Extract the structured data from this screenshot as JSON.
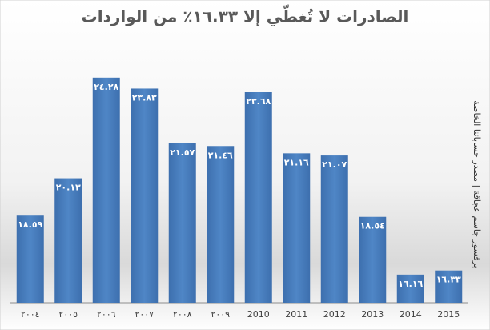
{
  "chart_data": {
    "type": "bar",
    "title": "الصادرات لا تُغطّي إلا ١٦.٣٣٪ من الواردات",
    "source": "برفسور جاسم عجاقة | مصدر حساباتنا الخاصة",
    "categories": [
      "٢٠٠٤",
      "٢٠٠٥",
      "٢٠٠٦",
      "٢٠٠٧",
      "٢٠٠٨",
      "٢٠٠٩",
      "2010",
      "2011",
      "2012",
      "2013",
      "2014",
      "2015"
    ],
    "values": [
      18.59,
      20.13,
      24.28,
      23.83,
      21.57,
      21.46,
      23.68,
      21.16,
      21.07,
      18.54,
      16.16,
      16.33
    ],
    "value_labels": [
      "١٨.٥٩",
      "٢٠.١٣",
      "٢٤.٢٨",
      "٢٣.٨٣",
      "٢١.٥٧",
      "٢١.٤٦",
      "٢٣.٦٨",
      "٢١.١٦",
      "٢١.٠٧",
      "١٨.٥٤",
      "١٦.١٦",
      "١٦.٣٣"
    ],
    "color": "#4a7ebb",
    "ylim": [
      15,
      25
    ]
  }
}
